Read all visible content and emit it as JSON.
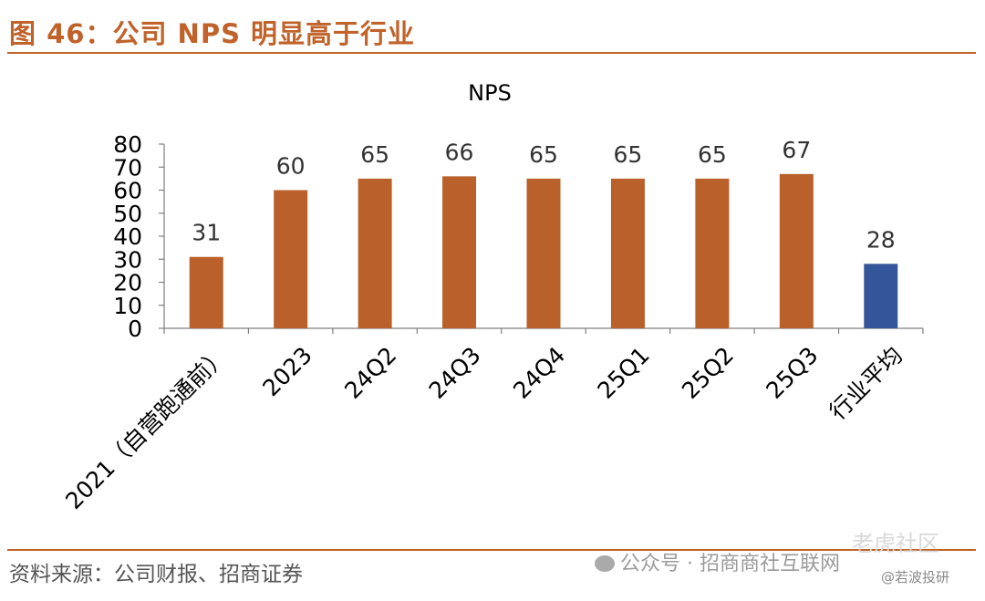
{
  "figure": {
    "title": "图 46：公司 NPS 明显高于行业",
    "source": "资料来源：公司财报、招商证券"
  },
  "watermarks": {
    "wechat": "公众号 · 招商商社互联网",
    "brand": "老虎社区",
    "handle": "@若波投研",
    "wechat_icon": "wechat-icon"
  },
  "colors": {
    "accent": "#c0622a",
    "bar": "#b9602b",
    "highlight": "#34559a"
  },
  "chart_data": {
    "type": "bar",
    "title": "NPS",
    "xlabel": "",
    "ylabel": "",
    "categories": [
      "2021（自营跑通前）",
      "2023",
      "24Q2",
      "24Q3",
      "24Q4",
      "25Q1",
      "25Q2",
      "25Q3",
      "行业平均"
    ],
    "values": [
      31,
      60,
      65,
      66,
      65,
      65,
      65,
      67,
      28
    ],
    "data_labels": [
      "31",
      "60",
      "65",
      "66",
      "65",
      "65",
      "65",
      "67",
      "28"
    ],
    "highlight_category": "行业平均",
    "ylim": [
      0,
      80
    ],
    "yticks": [
      0,
      10,
      20,
      30,
      40,
      50,
      60,
      70,
      80
    ],
    "grid": false,
    "legend": "none"
  }
}
